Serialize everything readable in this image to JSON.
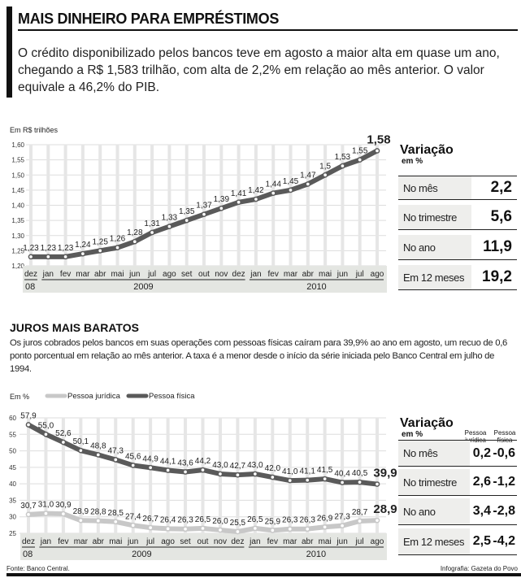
{
  "header": {
    "title": "MAIS DINHEIRO PARA EMPRÉSTIMOS",
    "intro": "O crédito disponibilizado pelos bancos teve em agosto a maior alta em quase um ano, chegando a R$ 1,583 trilhão, com alta de 2,2% em relação ao mês anterior.  O valor equivale a 46,2% do PIB."
  },
  "table1": {
    "title": "Variação",
    "subtitle": "em %",
    "rows": [
      {
        "label": "No mês",
        "value": "2,2"
      },
      {
        "label": "No trimestre",
        "value": "5,6"
      },
      {
        "label": "No ano",
        "value": "11,9"
      },
      {
        "label": "Em 12 meses",
        "value": "19,2"
      }
    ]
  },
  "section2": {
    "title": "JUROS MAIS BARATOS",
    "text": "Os juros cobrados pelos bancos em suas operações com pessoas físicas caíram para 39,9% ao ano em agosto, um recuo de 0,6 ponto porcentual em relação ao mês anterior. A taxa é a menor desde o início da série iniciada pelo Banco Central em julho de 1994."
  },
  "table2": {
    "title": "Variação",
    "subtitle": "em %",
    "col1": "Pessoa jurídica",
    "col2": "Pessoa física",
    "rows": [
      {
        "label": "No mês",
        "pj": "0,2",
        "pf": "-0,6"
      },
      {
        "label": "No trimestre",
        "pj": "2,6",
        "pf": "-1,2"
      },
      {
        "label": "No ano",
        "pj": "3,4",
        "pf": "-2,8"
      },
      {
        "label": "Em 12 meses",
        "pj": "2,5",
        "pf": "-4,2"
      }
    ]
  },
  "footer": {
    "source": "Fonte: Banco Central.",
    "credit": "Infografia: Gazeta do Povo"
  },
  "colors": {
    "dark_line": "#5a5a5a",
    "light_line": "#c8c8c8",
    "band": "#e4e6e2"
  },
  "chart_data": [
    {
      "type": "line",
      "ylabel": "Em R$ trilhões",
      "ylim": [
        1.2,
        1.6
      ],
      "yticks": [
        "1,20",
        "1,25",
        "1,30",
        "1,35",
        "1,40",
        "1,45",
        "1,50",
        "1,55",
        "1,60"
      ],
      "grid": true,
      "categories": [
        "dez",
        "jan",
        "fev",
        "mar",
        "abr",
        "mai",
        "jun",
        "jul",
        "ago",
        "set",
        "out",
        "nov",
        "dez",
        "jan",
        "fev",
        "mar",
        "abr",
        "mai",
        "jun",
        "jul",
        "ago"
      ],
      "years": [
        {
          "label": "08",
          "from": 0,
          "to": 0
        },
        {
          "label": "2009",
          "from": 1,
          "to": 12
        },
        {
          "label": "2010",
          "from": 13,
          "to": 20
        }
      ],
      "series": [
        {
          "values": [
            1.23,
            1.23,
            1.23,
            1.24,
            1.25,
            1.26,
            1.28,
            1.31,
            1.33,
            1.35,
            1.37,
            1.39,
            1.41,
            1.42,
            1.44,
            1.45,
            1.47,
            1.5,
            1.53,
            1.55,
            1.58
          ],
          "labels": [
            "1,23",
            "1,23",
            "1,23",
            "1,24",
            "1,25",
            "1,26",
            "1,28",
            "1,31",
            "1,33",
            "1,35",
            "1,37",
            "1,39",
            "1,41",
            "1,42",
            "1,44",
            "1,45",
            "1,47",
            "1,5",
            "1,53",
            "1,55",
            "1,58"
          ]
        }
      ]
    },
    {
      "type": "line",
      "ylabel": "Em %",
      "ylim": [
        25,
        60
      ],
      "yticks": [
        "25",
        "30",
        "35",
        "40",
        "45",
        "50",
        "55",
        "60"
      ],
      "grid": true,
      "legend": "top-left",
      "categories": [
        "dez",
        "jan",
        "fev",
        "mar",
        "abr",
        "mai",
        "jun",
        "jul",
        "ago",
        "set",
        "out",
        "nov",
        "dez",
        "jan",
        "fev",
        "mar",
        "abr",
        "mai",
        "jun",
        "jul",
        "ago"
      ],
      "years": [
        {
          "label": "08",
          "from": 0,
          "to": 0
        },
        {
          "label": "2009",
          "from": 1,
          "to": 12
        },
        {
          "label": "2010",
          "from": 13,
          "to": 20
        }
      ],
      "series": [
        {
          "name": "Pessoa jurídica",
          "values": [
            30.7,
            31.0,
            30.9,
            28.9,
            28.8,
            28.5,
            27.4,
            26.7,
            26.4,
            26.3,
            26.5,
            26.0,
            25.5,
            26.5,
            25.9,
            26.3,
            26.3,
            26.9,
            27.3,
            28.7,
            28.9
          ],
          "labels": [
            "30,7",
            "31,0",
            "30,9",
            "28,9",
            "28,8",
            "28,5",
            "27,4",
            "26,7",
            "26,4",
            "26,3",
            "26,5",
            "26,0",
            "25,5",
            "26,5",
            "25,9",
            "26,3",
            "26,3",
            "26,9",
            "27,3",
            "28,7",
            "28,9"
          ]
        },
        {
          "name": "Pessoa física",
          "values": [
            57.9,
            55.0,
            52.6,
            50.1,
            48.8,
            47.3,
            45.6,
            44.9,
            44.1,
            43.6,
            44.2,
            43.0,
            42.7,
            43.0,
            42.0,
            41.0,
            41.1,
            41.5,
            40.4,
            40.5,
            39.9
          ],
          "labels": [
            "57,9",
            "55,0",
            "52,6",
            "50,1",
            "48,8",
            "47,3",
            "45,6",
            "44,9",
            "44,1",
            "43,6",
            "44,2",
            "43,0",
            "42,7",
            "43,0",
            "42,0",
            "41,0",
            "41,1",
            "41,5",
            "40,4",
            "40,5",
            "39,9"
          ]
        }
      ]
    }
  ]
}
